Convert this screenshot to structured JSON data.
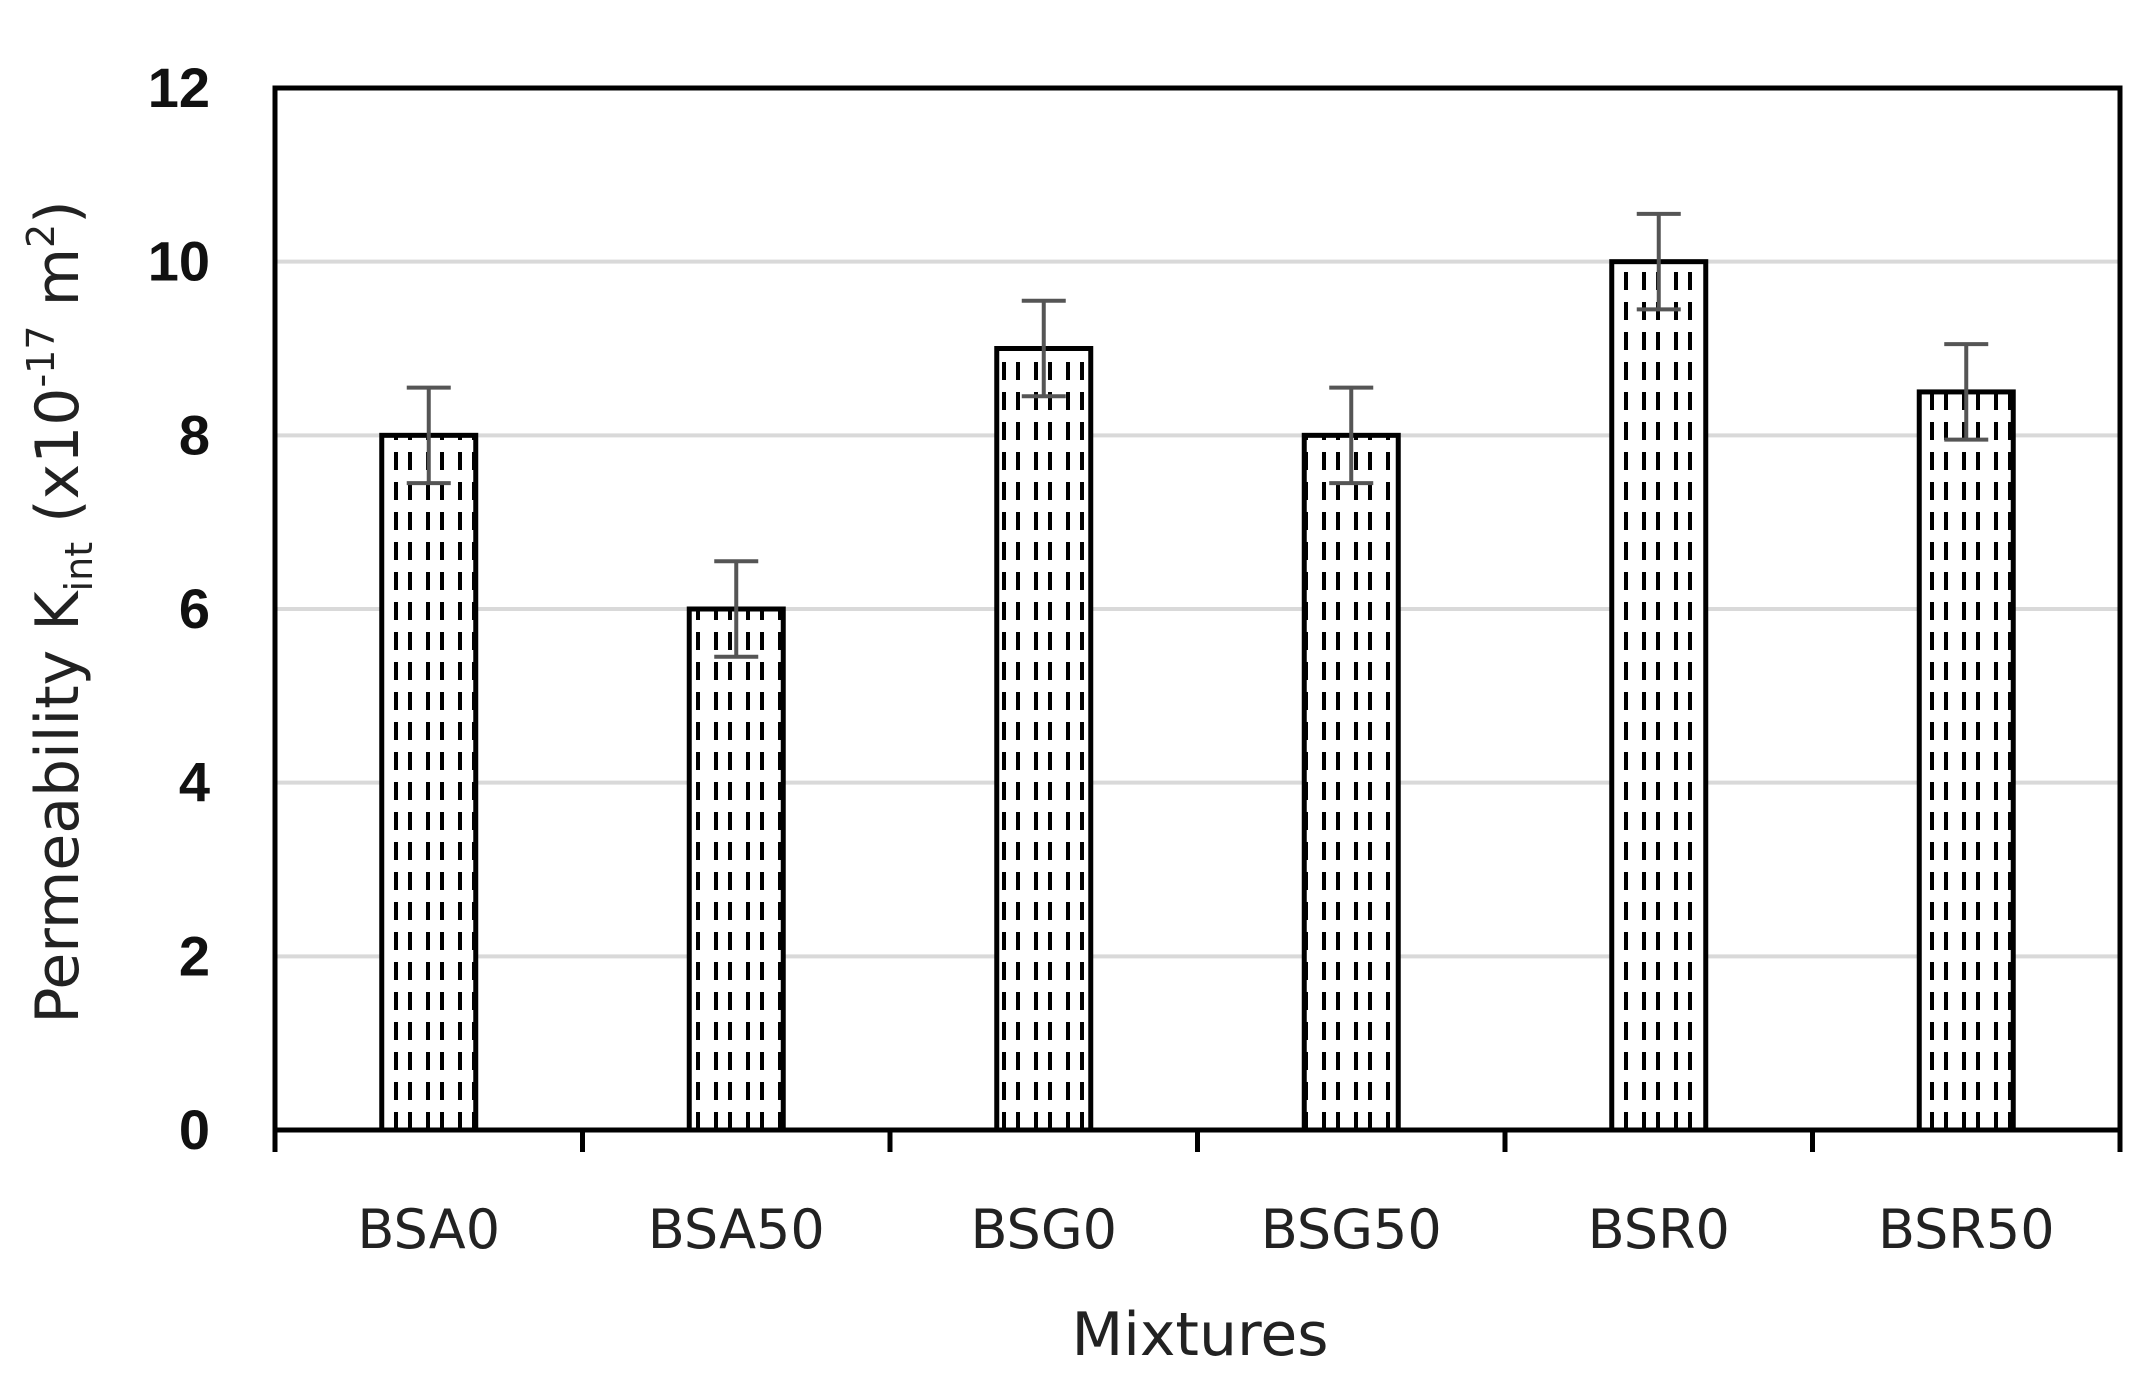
{
  "chart_data": {
    "type": "bar",
    "categories": [
      "BSA0",
      "BSA50",
      "BSG0",
      "BSG50",
      "BSR0",
      "BSR50"
    ],
    "values": [
      8,
      6,
      9,
      8,
      10,
      8.5
    ],
    "error": [
      0.55,
      0.55,
      0.55,
      0.55,
      0.55,
      0.55
    ],
    "xlabel": "Mixtures",
    "ylabel_parts": {
      "prefix": "Permeability K",
      "sub": "int",
      "mid": " (x10",
      "sup": "-17",
      "unit": " m",
      "sup2": "2",
      "suffix": ")"
    },
    "ylim": [
      0,
      12
    ],
    "yticks": [
      "0",
      "2",
      "4",
      "6",
      "8",
      "10",
      "12"
    ],
    "grid": true,
    "colors": {
      "bar_fill": "#ffffff",
      "bar_stroke": "#000000",
      "hatch": "#000000",
      "grid": "#d9d9d9",
      "error": "#555555"
    }
  }
}
